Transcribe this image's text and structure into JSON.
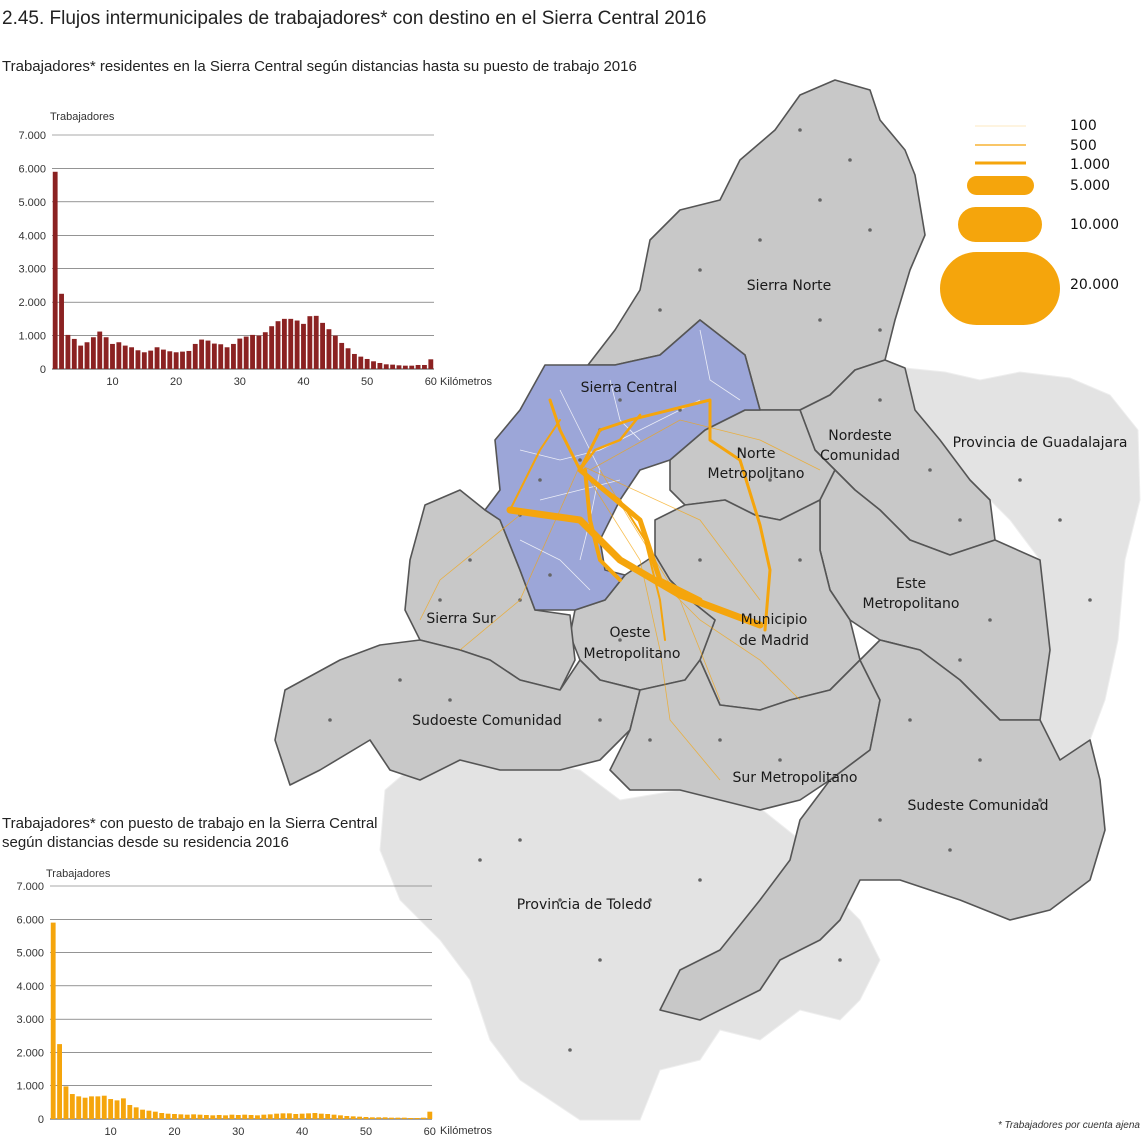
{
  "title": "2.45. Flujos intermunicipales de trabajadores* con destino en el Sierra Central 2016",
  "footnote": "* Trabajadores por cuenta ajena",
  "colors": {
    "flow": "#f5a50c",
    "bar_top": "#8b2222",
    "bar_bottom": "#f5a50c",
    "region_highlight": "#9ca6d8",
    "region_madrid": "#c8c8c8",
    "region_outside": "#e3e3e3",
    "border": "#555555"
  },
  "map": {
    "region_labels": {
      "sierra_norte": "Sierra Norte",
      "sierra_central": "Sierra Central",
      "nordeste_1": "Nordeste",
      "nordeste_2": "Comunidad",
      "norte_1": "Norte",
      "norte_2": "Metropolitano",
      "guadalajara": "Provincia de Guadalajara",
      "este_1": "Este",
      "este_2": "Metropolitano",
      "sierra_sur": "Sierra Sur",
      "oeste_1": "Oeste",
      "oeste_2": "Metropolitano",
      "madrid_1": "Municipio",
      "madrid_2": "de Madrid",
      "sudoeste": "Sudoeste Comunidad",
      "sur": "Sur Metropolitano",
      "sudeste": "Sudeste Comunidad",
      "toledo": "Provincia de Toledo"
    },
    "legend": [
      {
        "label": "100",
        "value": 100
      },
      {
        "label": "500",
        "value": 500
      },
      {
        "label": "1.000",
        "value": 1000
      },
      {
        "label": "5.000",
        "value": 5000
      },
      {
        "label": "10.000",
        "value": 10000
      },
      {
        "label": "20.000",
        "value": 20000
      }
    ]
  },
  "chart_data": [
    {
      "type": "bar",
      "title": "Trabajadores* residentes en la Sierra Central según distancias hasta su puesto de trabajo 2016",
      "ylabel": "Trabajadores",
      "xlabel": "Kilómetros",
      "ylim": [
        0,
        7000
      ],
      "y_ticks": [
        "0",
        "1.000",
        "2.000",
        "3.000",
        "4.000",
        "5.000",
        "6.000",
        "7.000"
      ],
      "x_ticks": [
        "10",
        "20",
        "30",
        "40",
        "50",
        "60"
      ],
      "x": [
        1,
        2,
        3,
        4,
        5,
        6,
        7,
        8,
        9,
        10,
        11,
        12,
        13,
        14,
        15,
        16,
        17,
        18,
        19,
        20,
        21,
        22,
        23,
        24,
        25,
        26,
        27,
        28,
        29,
        30,
        31,
        32,
        33,
        34,
        35,
        36,
        37,
        38,
        39,
        40,
        41,
        42,
        43,
        44,
        45,
        46,
        47,
        48,
        49,
        50,
        51,
        52,
        53,
        54,
        55,
        56,
        57,
        58,
        59,
        60
      ],
      "values": [
        5900,
        2250,
        1020,
        900,
        700,
        800,
        950,
        1120,
        950,
        750,
        800,
        700,
        650,
        560,
        500,
        550,
        650,
        580,
        530,
        500,
        520,
        540,
        750,
        880,
        850,
        760,
        740,
        650,
        750,
        910,
        970,
        1020,
        1000,
        1100,
        1280,
        1430,
        1500,
        1500,
        1450,
        1350,
        1580,
        1590,
        1380,
        1190,
        1000,
        780,
        620,
        450,
        370,
        300,
        230,
        180,
        140,
        130,
        110,
        100,
        100,
        120,
        120,
        290
      ],
      "grid": true
    },
    {
      "type": "bar",
      "title": "Trabajadores* con puesto de trabajo en la Sierra Central según distancias desde su residencia 2016",
      "ylabel": "Trabajadores",
      "xlabel": "Kilómetros",
      "ylim": [
        0,
        7000
      ],
      "y_ticks": [
        "0",
        "1.000",
        "2.000",
        "3.000",
        "4.000",
        "5.000",
        "6.000",
        "7.000"
      ],
      "x_ticks": [
        "10",
        "20",
        "30",
        "40",
        "50",
        "60"
      ],
      "x": [
        1,
        2,
        3,
        4,
        5,
        6,
        7,
        8,
        9,
        10,
        11,
        12,
        13,
        14,
        15,
        16,
        17,
        18,
        19,
        20,
        21,
        22,
        23,
        24,
        25,
        26,
        27,
        28,
        29,
        30,
        31,
        32,
        33,
        34,
        35,
        36,
        37,
        38,
        39,
        40,
        41,
        42,
        43,
        44,
        45,
        46,
        47,
        48,
        49,
        50,
        51,
        52,
        53,
        54,
        55,
        56,
        57,
        58,
        59,
        60
      ],
      "values": [
        5900,
        2250,
        980,
        750,
        680,
        640,
        680,
        680,
        700,
        600,
        560,
        620,
        420,
        350,
        280,
        250,
        220,
        180,
        160,
        150,
        140,
        130,
        140,
        130,
        120,
        110,
        120,
        110,
        130,
        120,
        130,
        120,
        110,
        130,
        140,
        160,
        170,
        170,
        150,
        160,
        170,
        180,
        160,
        150,
        130,
        110,
        90,
        80,
        70,
        60,
        50,
        50,
        50,
        40,
        40,
        40,
        30,
        30,
        40,
        220
      ],
      "grid": true
    }
  ]
}
